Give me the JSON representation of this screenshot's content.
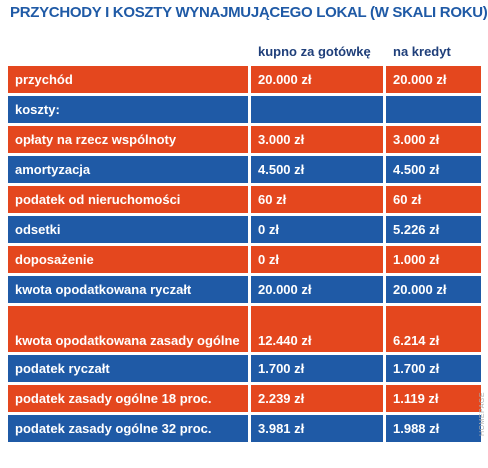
{
  "title": "PRZYCHODY I KOSZTY WYNAJMUJĄCEGO LOKAL (W SKALI ROKU)",
  "columns": [
    "",
    "kupno za gotówkę",
    "na kredyt"
  ],
  "rows": [
    {
      "label": "przychód",
      "cash": "20.000 zł",
      "credit": "20.000 zł",
      "color": "#e4471e"
    },
    {
      "label": "koszty:",
      "cash": "",
      "credit": "",
      "color": "#1f5aa6"
    },
    {
      "label": "opłaty na rzecz wspólnoty",
      "cash": "3.000 zł",
      "credit": "3.000 zł",
      "color": "#e4471e"
    },
    {
      "label": "amortyzacja",
      "cash": "4.500 zł",
      "credit": "4.500 zł",
      "color": "#1f5aa6"
    },
    {
      "label": "podatek od nieruchomości",
      "cash": "60 zł",
      "credit": "60 zł",
      "color": "#e4471e"
    },
    {
      "label": "odsetki",
      "cash": "0 zł",
      "credit": "5.226 zł",
      "color": "#1f5aa6"
    },
    {
      "label": "doposażenie",
      "cash": "0 zł",
      "credit": "1.000 zł",
      "color": "#e4471e"
    },
    {
      "label": "kwota opodatkowana ryczałt",
      "cash": "20.000 zł",
      "credit": "20.000 zł",
      "color": "#1f5aa6"
    },
    {
      "label": "kwota opodatkowana zasady ogólne",
      "cash": "12.440 zł",
      "credit": "6.214 zł",
      "color": "#e4471e"
    },
    {
      "label": "podatek ryczałt",
      "cash": "1.700 zł",
      "credit": "1.700 zł",
      "color": "#1f5aa6"
    },
    {
      "label": "podatek zasady ogólne 18 proc.",
      "cash": "2.239 zł",
      "credit": "1.119 zł",
      "color": "#e4471e"
    },
    {
      "label": "podatek zasady ogólne 32 proc.",
      "cash": "3.981 zł",
      "credit": "1.988 zł",
      "color": "#1f5aa6"
    }
  ],
  "credit_text": "HOMEPAGE"
}
